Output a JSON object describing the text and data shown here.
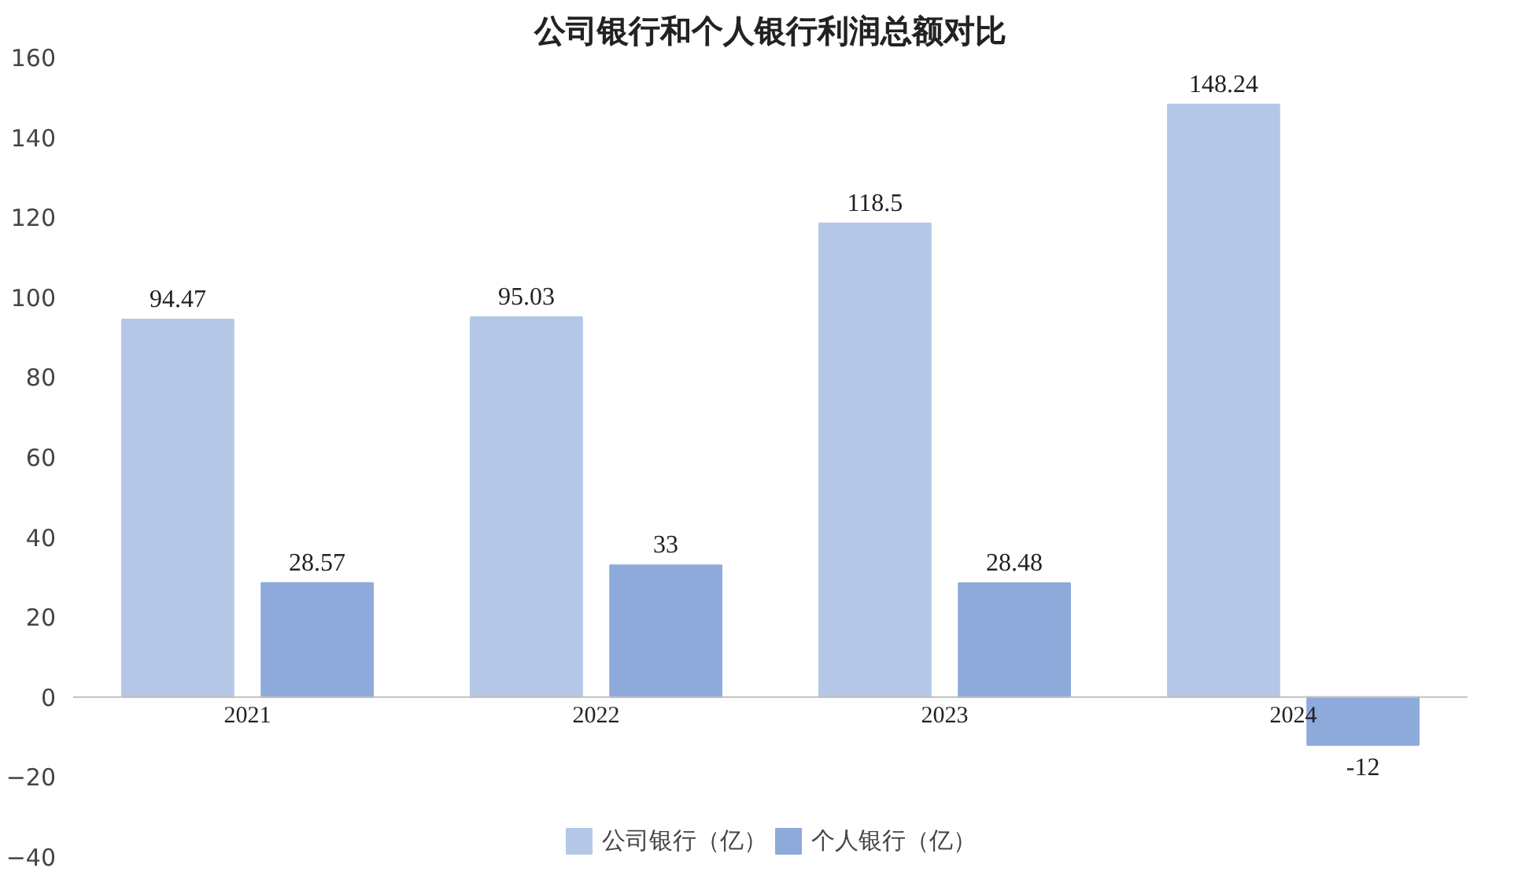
{
  "chart_data": {
    "type": "bar",
    "title": "公司银行和个人银行利润总额对比",
    "categories": [
      "2021",
      "2022",
      "2023",
      "2024"
    ],
    "series": [
      {
        "name": "公司银行（亿）",
        "color": "#b4c7e7",
        "values": [
          94.47,
          95.03,
          118.5,
          148.24
        ]
      },
      {
        "name": "个人银行（亿）",
        "color": "#8eaadb",
        "values": [
          28.57,
          33,
          28.48,
          -12
        ]
      }
    ],
    "ylim": [
      -40,
      160
    ],
    "yticks": [
      -40,
      -20,
      0,
      20,
      40,
      60,
      80,
      100,
      120,
      140,
      160
    ],
    "data_labels": true,
    "legend": "bottom",
    "grid": false
  }
}
